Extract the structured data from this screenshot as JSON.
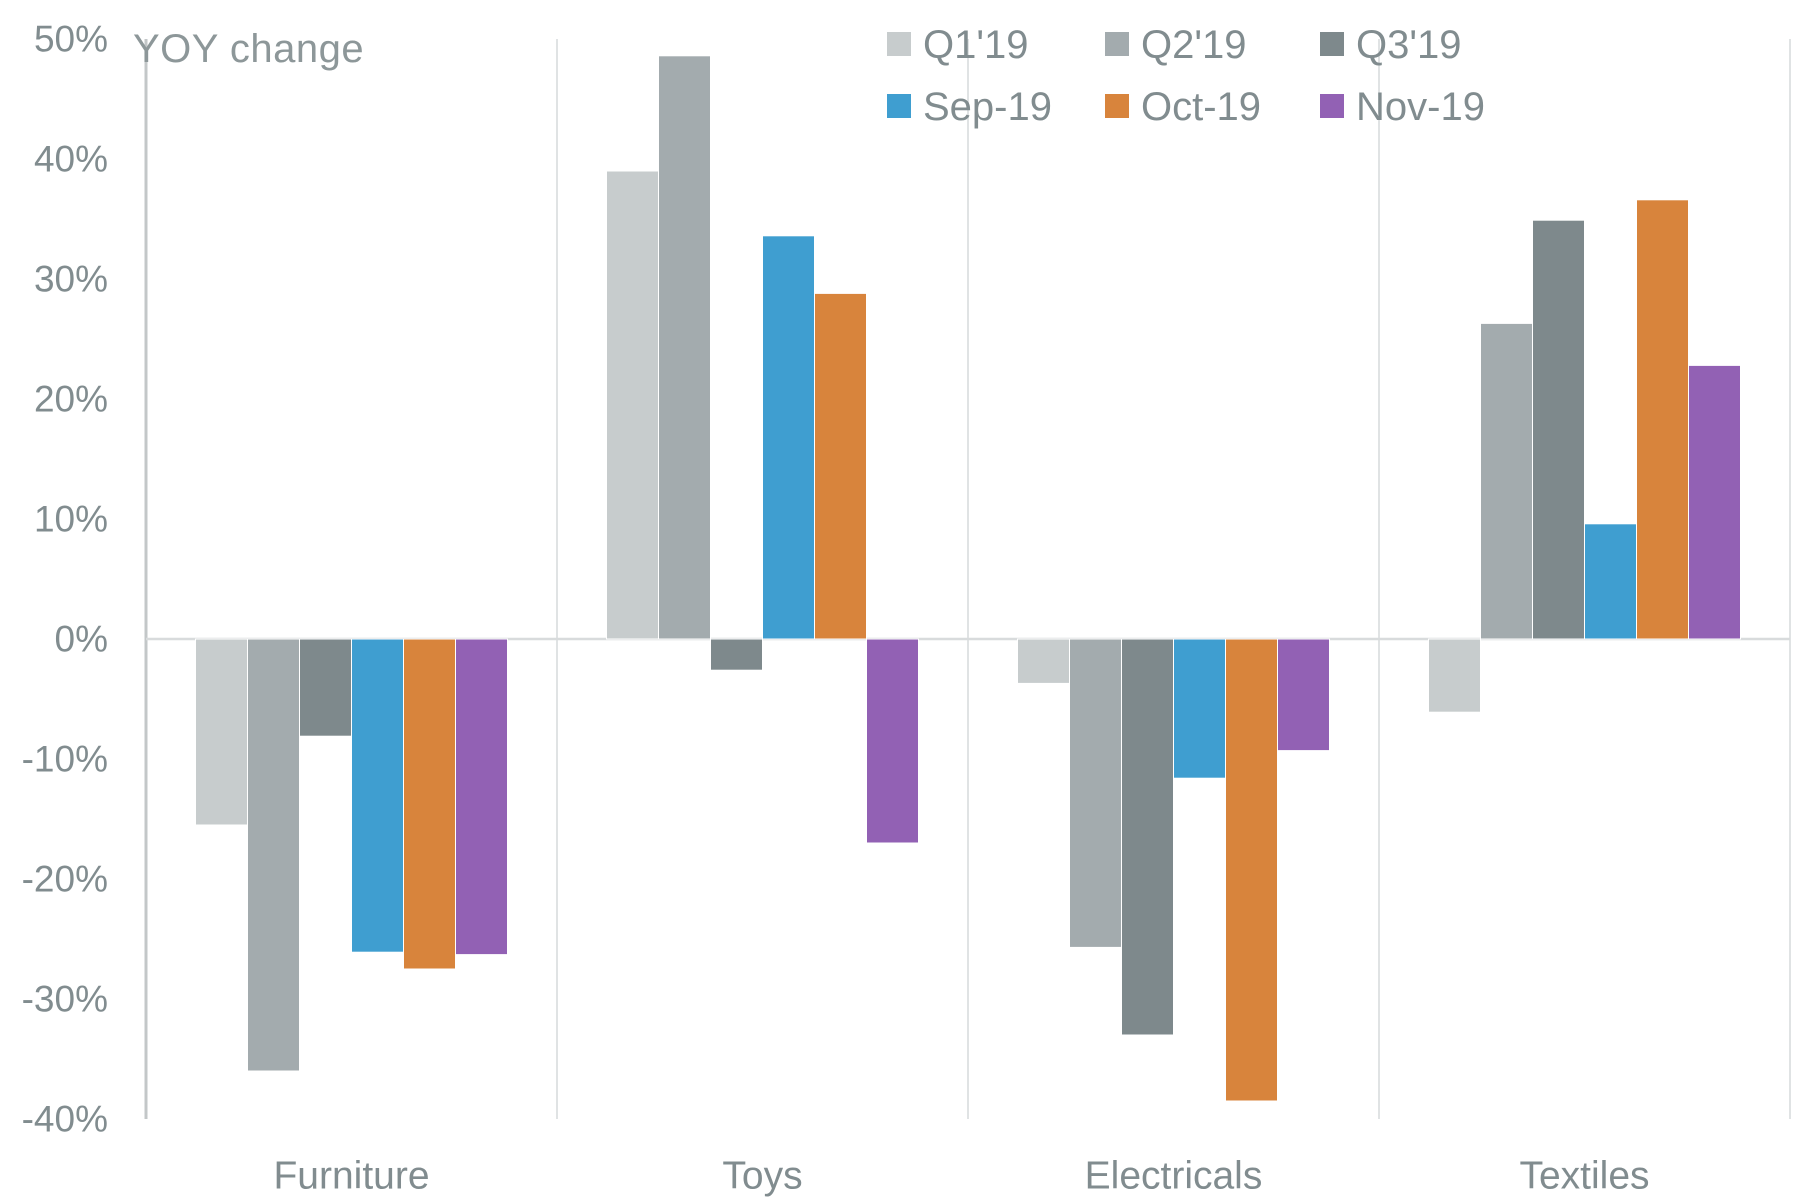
{
  "chart_data": {
    "type": "bar",
    "title": "",
    "ylabel": "YOY change",
    "xlabel": "",
    "categories": [
      "Furniture",
      "Toys",
      "Electricals",
      "Textiles"
    ],
    "series": [
      {
        "name": "Q1'19",
        "color": "#c7cccd",
        "values": [
          -15.5,
          39.0,
          -3.7,
          -6.1
        ]
      },
      {
        "name": "Q2'19",
        "color": "#a3abae",
        "values": [
          -36.0,
          48.6,
          -25.7,
          26.3
        ]
      },
      {
        "name": "Q3'19",
        "color": "#7e898c",
        "values": [
          -8.1,
          -2.6,
          -33.0,
          34.9
        ]
      },
      {
        "name": "Sep-19",
        "color": "#3f9ed0",
        "values": [
          -26.1,
          33.6,
          -11.6,
          9.6
        ]
      },
      {
        "name": "Oct-19",
        "color": "#d8843c",
        "values": [
          -27.5,
          28.8,
          -38.5,
          36.6
        ]
      },
      {
        "name": "Nov-19",
        "color": "#9261b4",
        "values": [
          -26.3,
          -17.0,
          -9.3,
          22.8
        ]
      }
    ],
    "ylim": [
      -40,
      50
    ],
    "ytick_step": 10,
    "ytick_labels": [
      "50%",
      "40%",
      "30%",
      "20%",
      "10%",
      "0%",
      "-10%",
      "-20%",
      "-30%",
      "-40%"
    ],
    "grid": {
      "zero_line": true,
      "vertical_separators": true,
      "horizontal_gridlines": false,
      "bottom_border": false
    },
    "legend_position": "top-right",
    "legend_rows": [
      [
        "Q1'19",
        "Q2'19",
        "Q3'19"
      ],
      [
        "Sep-19",
        "Oct-19",
        "Nov-19"
      ]
    ],
    "colors": {
      "background": "#ffffff",
      "text": "#818c8f",
      "axis_line": "#c3c7c8",
      "separator_line": "#e0e3e4",
      "zero_line": "#d8dbdc"
    }
  }
}
